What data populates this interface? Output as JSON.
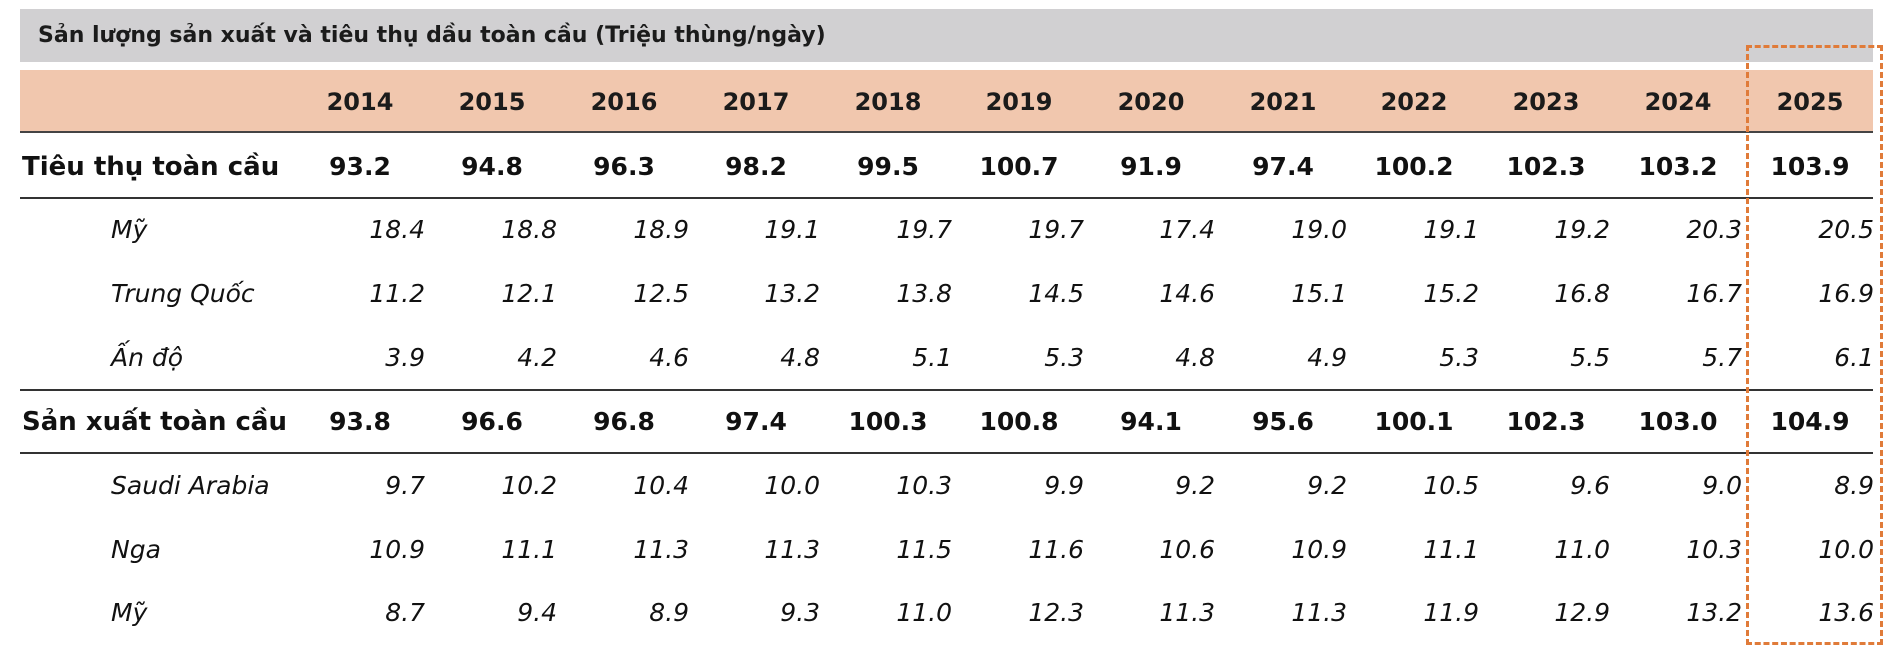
{
  "title": "Sản lượng sản xuất và tiêu thụ dầu toàn cầu (Triệu thùng/ngày)",
  "chart_data": {
    "type": "table",
    "title": "Sản lượng sản xuất và tiêu thụ dầu toàn cầu (Triệu thùng/ngày)",
    "columns": [
      "2014",
      "2015",
      "2016",
      "2017",
      "2018",
      "2019",
      "2020",
      "2021",
      "2022",
      "2023",
      "2024",
      "2025"
    ],
    "rows": [
      {
        "label": "Tiêu thụ toàn cầu",
        "bold": true,
        "values": [
          "93.2",
          "94.8",
          "96.3",
          "98.2",
          "99.5",
          "100.7",
          "91.9",
          "97.4",
          "100.2",
          "102.3",
          "103.2",
          "103.9"
        ]
      },
      {
        "label": "Mỹ",
        "bold": false,
        "values": [
          "18.4",
          "18.8",
          "18.9",
          "19.1",
          "19.7",
          "19.7",
          "17.4",
          "19.0",
          "19.1",
          "19.2",
          "20.3",
          "20.5"
        ]
      },
      {
        "label": "Trung Quốc",
        "bold": false,
        "values": [
          "11.2",
          "12.1",
          "12.5",
          "13.2",
          "13.8",
          "14.5",
          "14.6",
          "15.1",
          "15.2",
          "16.8",
          "16.7",
          "16.9"
        ]
      },
      {
        "label": "Ấn độ",
        "bold": false,
        "values": [
          "3.9",
          "4.2",
          "4.6",
          "4.8",
          "5.1",
          "5.3",
          "4.8",
          "4.9",
          "5.3",
          "5.5",
          "5.7",
          "6.1"
        ]
      },
      {
        "label": "Sản xuất toàn cầu",
        "bold": true,
        "values": [
          "93.8",
          "96.6",
          "96.8",
          "97.4",
          "100.3",
          "100.8",
          "94.1",
          "95.6",
          "100.1",
          "102.3",
          "103.0",
          "104.9"
        ]
      },
      {
        "label": "Saudi Arabia",
        "bold": false,
        "values": [
          "9.7",
          "10.2",
          "10.4",
          "10.0",
          "10.3",
          "9.9",
          "9.2",
          "9.2",
          "10.5",
          "9.6",
          "9.0",
          "8.9"
        ]
      },
      {
        "label": "Nga",
        "bold": false,
        "values": [
          "10.9",
          "11.1",
          "11.3",
          "11.3",
          "11.5",
          "11.6",
          "10.6",
          "10.9",
          "11.1",
          "11.0",
          "10.3",
          "10.0"
        ]
      },
      {
        "label": "Mỹ",
        "bold": false,
        "values": [
          "8.7",
          "9.4",
          "8.9",
          "9.3",
          "11.0",
          "12.3",
          "11.3",
          "11.3",
          "11.9",
          "12.9",
          "13.2",
          "13.6"
        ]
      }
    ],
    "highlighted_column": "2025"
  },
  "colors": {
    "title_bg": "#d1d0d2",
    "header_bg": "#f1c7ae",
    "highlight": "#e07b39",
    "rule": "#333333"
  }
}
